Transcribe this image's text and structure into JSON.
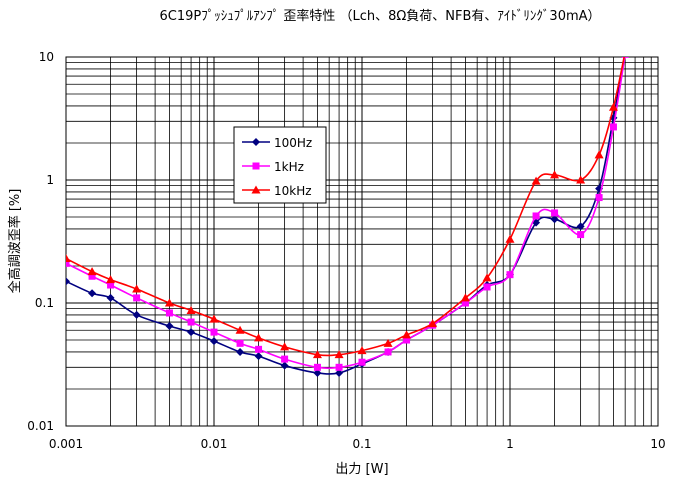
{
  "chart_data": {
    "type": "line",
    "title": "6C19Pﾌﾟｯｼｭﾌﾟﾙｱﾝﾌﾟ 歪率特性 （Lch、8Ω負荷、NFB有、ｱｲﾄﾞﾘﾝｸﾞ30mA）",
    "xlabel": "出力 [W]",
    "ylabel": "全高調波歪率 [%]",
    "x_scale": "log",
    "y_scale": "log",
    "xlim": [
      0.001,
      10
    ],
    "ylim": [
      0.01,
      10
    ],
    "x_ticks": [
      "0.001",
      "0.01",
      "0.1",
      "1",
      "10"
    ],
    "y_ticks": [
      "0.01",
      "0.1",
      "1",
      "10"
    ],
    "grid": true,
    "legend_position": "upper-left inset",
    "series": [
      {
        "name": "100Hz",
        "color": "#000080",
        "marker": "diamond",
        "x": [
          0.001,
          0.0015,
          0.002,
          0.003,
          0.005,
          0.007,
          0.01,
          0.015,
          0.02,
          0.03,
          0.05,
          0.07,
          0.1,
          0.15,
          0.2,
          0.3,
          0.5,
          0.7,
          1,
          1.5,
          2,
          3,
          4,
          5,
          6
        ],
        "y": [
          0.15,
          0.12,
          0.11,
          0.08,
          0.065,
          0.058,
          0.049,
          0.04,
          0.037,
          0.031,
          0.027,
          0.027,
          0.032,
          0.04,
          0.05,
          0.066,
          0.1,
          0.14,
          0.17,
          0.45,
          0.48,
          0.42,
          0.85,
          3.2,
          10.5
        ]
      },
      {
        "name": "1kHz",
        "color": "#ff00ff",
        "marker": "square",
        "x": [
          0.001,
          0.0015,
          0.002,
          0.003,
          0.005,
          0.007,
          0.01,
          0.015,
          0.02,
          0.03,
          0.05,
          0.07,
          0.1,
          0.15,
          0.2,
          0.3,
          0.5,
          0.7,
          1,
          1.5,
          2,
          3,
          4,
          5,
          6
        ],
        "y": [
          0.21,
          0.165,
          0.14,
          0.11,
          0.083,
          0.07,
          0.058,
          0.047,
          0.042,
          0.035,
          0.03,
          0.03,
          0.033,
          0.04,
          0.05,
          0.066,
          0.1,
          0.135,
          0.17,
          0.51,
          0.54,
          0.36,
          0.72,
          2.7,
          10.5
        ]
      },
      {
        "name": "10kHz",
        "color": "#ff0000",
        "marker": "triangle",
        "x": [
          0.001,
          0.0015,
          0.002,
          0.003,
          0.005,
          0.007,
          0.01,
          0.015,
          0.02,
          0.03,
          0.05,
          0.07,
          0.1,
          0.15,
          0.2,
          0.3,
          0.5,
          0.7,
          1,
          1.5,
          2,
          3,
          4,
          5,
          6
        ],
        "y": [
          0.23,
          0.18,
          0.155,
          0.13,
          0.1,
          0.087,
          0.074,
          0.06,
          0.052,
          0.044,
          0.038,
          0.038,
          0.041,
          0.047,
          0.055,
          0.068,
          0.11,
          0.16,
          0.33,
          0.98,
          1.1,
          1.0,
          1.6,
          3.9,
          11
        ]
      }
    ]
  }
}
